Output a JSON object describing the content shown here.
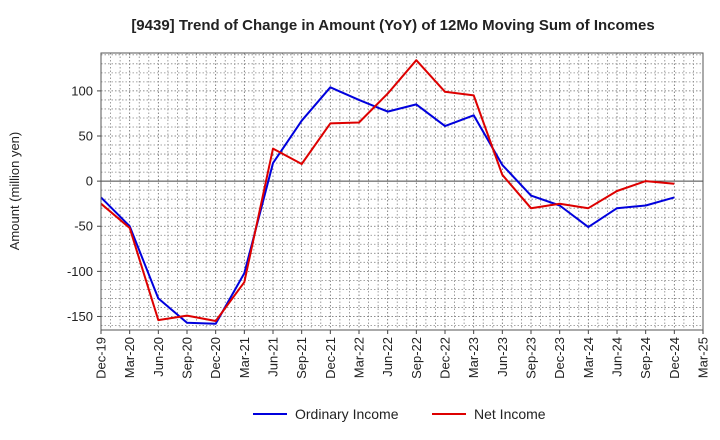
{
  "chart_data": {
    "type": "line",
    "title": "[9439]  Trend of Change in Amount (YoY) of 12Mo Moving Sum of Incomes",
    "xlabel": "",
    "ylabel": "Amount (million yen)",
    "categories": [
      "Dec-19",
      "Mar-20",
      "Jun-20",
      "Sep-20",
      "Dec-20",
      "Mar-21",
      "Jun-21",
      "Sep-21",
      "Dec-21",
      "Mar-22",
      "Jun-22",
      "Sep-22",
      "Dec-22",
      "Mar-23",
      "Jun-23",
      "Sep-23",
      "Dec-23",
      "Mar-24",
      "Jun-24",
      "Sep-24",
      "Dec-24",
      "Mar-25"
    ],
    "ylim": [
      -165,
      142
    ],
    "yticks": [
      100,
      50,
      0,
      -50,
      -100,
      -150
    ],
    "ytick_labels": [
      "100",
      "50",
      "0",
      "-50",
      "-100",
      "-150"
    ],
    "grid": true,
    "legend_position": "bottom",
    "series": [
      {
        "name": "Ordinary Income",
        "color": "#0000dd",
        "values": [
          -18,
          -50,
          -130,
          -157,
          -158,
          -102,
          20,
          67,
          104,
          90,
          77,
          85,
          61,
          73,
          18,
          -16,
          -27,
          -51,
          -30,
          -27,
          -18,
          null
        ]
      },
      {
        "name": "Net Income",
        "color": "#dd0000",
        "values": [
          -25,
          -52,
          -154,
          -149,
          -155,
          -112,
          36,
          19,
          64,
          65,
          97,
          134,
          99,
          95,
          7,
          -30,
          -25,
          -30,
          -11,
          0,
          -3,
          null
        ]
      }
    ]
  }
}
